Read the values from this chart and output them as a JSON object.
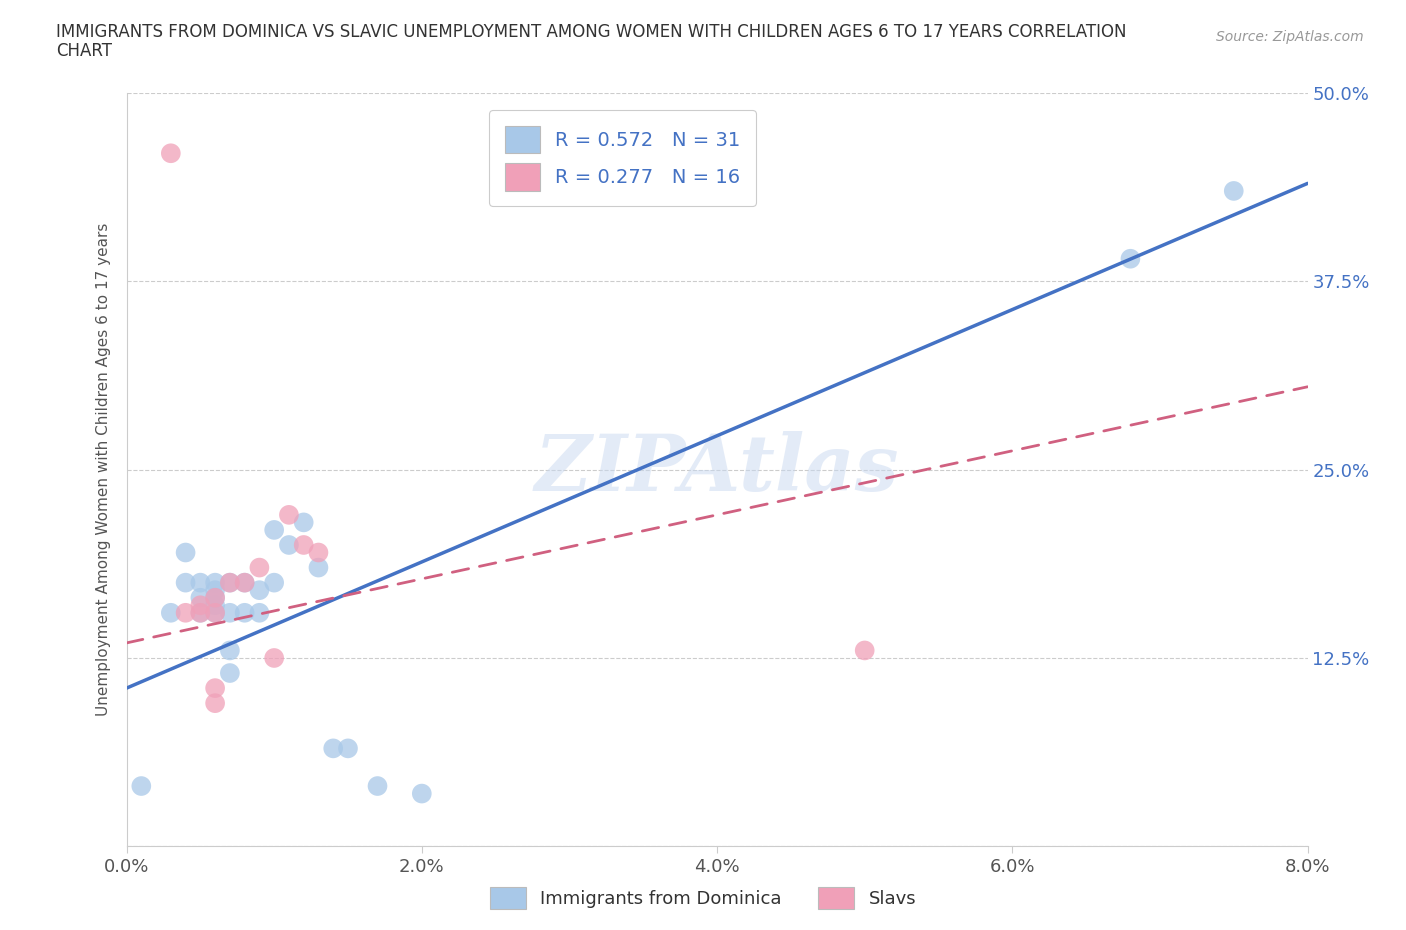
{
  "title_line1": "IMMIGRANTS FROM DOMINICA VS SLAVIC UNEMPLOYMENT AMONG WOMEN WITH CHILDREN AGES 6 TO 17 YEARS CORRELATION",
  "title_line2": "CHART",
  "source": "Source: ZipAtlas.com",
  "ylabel": "Unemployment Among Women with Children Ages 6 to 17 years",
  "legend_label1": "Immigrants from Dominica",
  "legend_label2": "Slavs",
  "R1": 0.572,
  "N1": 31,
  "R2": 0.277,
  "N2": 16,
  "xlim": [
    0.0,
    0.08
  ],
  "ylim": [
    0.0,
    0.5
  ],
  "xticks": [
    0.0,
    0.02,
    0.04,
    0.06,
    0.08
  ],
  "xtick_labels": [
    "0.0%",
    "2.0%",
    "4.0%",
    "6.0%",
    "8.0%"
  ],
  "yticks": [
    0.0,
    0.125,
    0.25,
    0.375,
    0.5
  ],
  "ytick_labels_right": [
    "",
    "12.5%",
    "25.0%",
    "37.5%",
    "50.0%"
  ],
  "color1": "#a8c8e8",
  "color2": "#f0a0b8",
  "line_color1": "#4472c4",
  "line_color2": "#d06080",
  "watermark": "ZIPAtlas",
  "scatter1_x": [
    0.001,
    0.003,
    0.004,
    0.004,
    0.005,
    0.005,
    0.005,
    0.006,
    0.006,
    0.006,
    0.006,
    0.006,
    0.007,
    0.007,
    0.007,
    0.007,
    0.008,
    0.008,
    0.009,
    0.009,
    0.01,
    0.01,
    0.011,
    0.012,
    0.013,
    0.014,
    0.015,
    0.017,
    0.02,
    0.068,
    0.075
  ],
  "scatter1_y": [
    0.04,
    0.155,
    0.175,
    0.195,
    0.155,
    0.165,
    0.175,
    0.155,
    0.16,
    0.165,
    0.17,
    0.175,
    0.115,
    0.13,
    0.155,
    0.175,
    0.155,
    0.175,
    0.155,
    0.17,
    0.175,
    0.21,
    0.2,
    0.215,
    0.185,
    0.065,
    0.065,
    0.04,
    0.035,
    0.39,
    0.435
  ],
  "scatter2_x": [
    0.003,
    0.004,
    0.005,
    0.005,
    0.006,
    0.006,
    0.007,
    0.008,
    0.009,
    0.01,
    0.011,
    0.012,
    0.013,
    0.05,
    0.006,
    0.006
  ],
  "scatter2_y": [
    0.46,
    0.155,
    0.155,
    0.16,
    0.155,
    0.165,
    0.175,
    0.175,
    0.185,
    0.125,
    0.22,
    0.2,
    0.195,
    0.13,
    0.105,
    0.095
  ]
}
